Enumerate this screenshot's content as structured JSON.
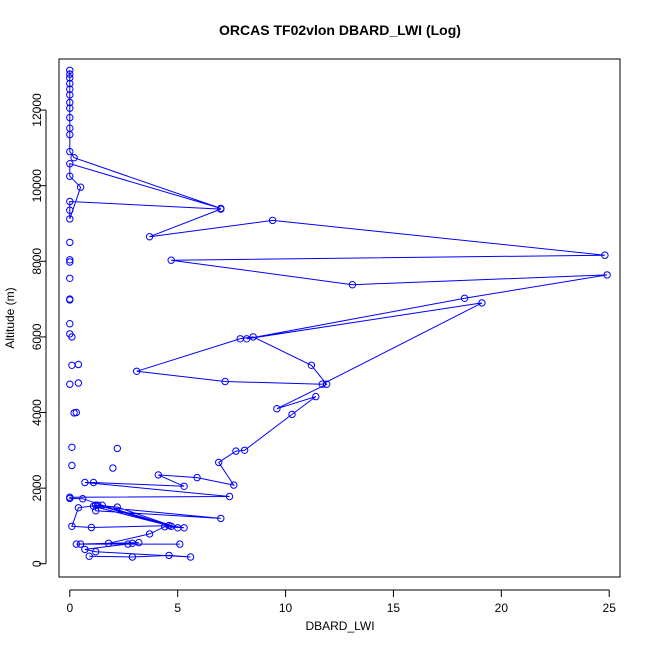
{
  "chart_data": {
    "type": "line",
    "title": "ORCAS TF02vlon DBARD_LWI (Log)",
    "xlabel": "DBARD_LWI",
    "ylabel": "Altitude (m)",
    "xlim": [
      -0.5,
      25.5
    ],
    "ylim": [
      -350,
      13350
    ],
    "x_ticks": [
      0,
      5,
      10,
      15,
      20,
      25
    ],
    "y_ticks": [
      0,
      2000,
      4000,
      6000,
      8000,
      10000,
      12000
    ],
    "grid": false,
    "legend": "none",
    "colors": {
      "series": "#0000ff",
      "axes": "#000000"
    },
    "series": [
      {
        "points": [
          {
            "x": 0.9,
            "y": 200
          },
          {
            "x": 2.9,
            "y": 180
          },
          {
            "x": 4.6,
            "y": 220
          },
          {
            "x": 5.6,
            "y": 180
          },
          {
            "x": 1.2,
            "y": 320
          },
          {
            "x": 0.7,
            "y": 380
          },
          {
            "x": 3.2,
            "y": 560
          },
          {
            "x": 0.3,
            "y": 520
          },
          {
            "x": 5.1,
            "y": 520
          },
          {
            "x": 2.7,
            "y": 520
          },
          {
            "x": 2.9,
            "y": 540
          },
          {
            "x": 0.5,
            "y": 520
          },
          {
            "x": 1.8,
            "y": 540
          },
          {
            "x": 3.7,
            "y": 790
          },
          {
            "x": 4.4,
            "y": 980
          },
          {
            "x": 5.3,
            "y": 950
          },
          {
            "x": 4.6,
            "y": 1010
          },
          {
            "x": 1.0,
            "y": 960
          },
          {
            "x": 0.1,
            "y": 990
          },
          {
            "x": 0.4,
            "y": 1480
          },
          {
            "x": 1.3,
            "y": 1550
          },
          {
            "x": 4.7,
            "y": 990
          },
          {
            "x": 1.1,
            "y": 1520
          },
          {
            "x": 7.0,
            "y": 1200
          },
          {
            "x": 1.2,
            "y": 1400
          },
          {
            "x": 1.2,
            "y": 1550
          },
          {
            "x": 2.2,
            "y": 1500
          },
          {
            "x": 5.0,
            "y": 950
          },
          {
            "x": 1.5,
            "y": 1550
          },
          {
            "x": 0.6,
            "y": 1720
          },
          {
            "x": 0.0,
            "y": 1730
          },
          {
            "x": 0.0,
            "y": 1760
          },
          {
            "x": 7.4,
            "y": 1780
          },
          {
            "x": 0.7,
            "y": 2150
          },
          {
            "x": 1.1,
            "y": 2150
          },
          {
            "x": 5.3,
            "y": 2050
          },
          {
            "x": 4.1,
            "y": 2350
          },
          {
            "x": 5.9,
            "y": 2280
          },
          {
            "x": 7.6,
            "y": 2080
          },
          {
            "x": 6.9,
            "y": 2680
          },
          {
            "x": 7.7,
            "y": 2980
          },
          {
            "x": 8.1,
            "y": 3000
          },
          {
            "x": 10.3,
            "y": 3950
          },
          {
            "x": 11.4,
            "y": 4420
          },
          {
            "x": 9.6,
            "y": 4100
          },
          {
            "x": 11.9,
            "y": 4750
          },
          {
            "x": 11.2,
            "y": 5250
          },
          {
            "x": 8.5,
            "y": 6000
          },
          {
            "x": 7.9,
            "y": 5950
          },
          {
            "x": 3.1,
            "y": 5090
          },
          {
            "x": 7.2,
            "y": 4820
          },
          {
            "x": 11.7,
            "y": 4750
          },
          {
            "x": 19.1,
            "y": 6900
          },
          {
            "x": 8.2,
            "y": 5950
          },
          {
            "x": 18.3,
            "y": 7020
          },
          {
            "x": 24.9,
            "y": 7640
          },
          {
            "x": 13.1,
            "y": 7380
          },
          {
            "x": 4.7,
            "y": 8030
          },
          {
            "x": 24.8,
            "y": 8160
          },
          {
            "x": 9.4,
            "y": 9080
          },
          {
            "x": 3.7,
            "y": 8650
          },
          {
            "x": 7.0,
            "y": 9380
          },
          {
            "x": 0.0,
            "y": 9580
          },
          {
            "x": 0.0,
            "y": 9350
          },
          {
            "x": 0.0,
            "y": 9120
          },
          {
            "x": 0.5,
            "y": 9960
          },
          {
            "x": 0.0,
            "y": 10250
          },
          {
            "x": 0.0,
            "y": 10580
          },
          {
            "x": 7.0,
            "y": 9400
          },
          {
            "x": 0.2,
            "y": 10740
          },
          {
            "x": 0.0,
            "y": 10900
          },
          {
            "x": 0.0,
            "y": 11350
          },
          {
            "x": 0.0,
            "y": 11520
          },
          {
            "x": 0.0,
            "y": 11800
          },
          {
            "x": 0.0,
            "y": 12050
          },
          {
            "x": 0.0,
            "y": 12200
          },
          {
            "x": 0.0,
            "y": 12400
          },
          {
            "x": 0.0,
            "y": 12550
          },
          {
            "x": 0.0,
            "y": 12700
          },
          {
            "x": 0.0,
            "y": 12850
          },
          {
            "x": 0.0,
            "y": 12950
          },
          {
            "x": 0.0,
            "y": 13050
          }
        ],
        "isolated_points": [
          {
            "x": 0.1,
            "y": 2600
          },
          {
            "x": 0.1,
            "y": 3080
          },
          {
            "x": 0.2,
            "y": 3990
          },
          {
            "x": 0.3,
            "y": 4000
          },
          {
            "x": 2.2,
            "y": 3050
          },
          {
            "x": 2.0,
            "y": 2530
          },
          {
            "x": 0.0,
            "y": 4750
          },
          {
            "x": 0.4,
            "y": 4780
          },
          {
            "x": 0.1,
            "y": 5250
          },
          {
            "x": 0.4,
            "y": 5270
          },
          {
            "x": 0.1,
            "y": 6000
          },
          {
            "x": 0.0,
            "y": 6080
          },
          {
            "x": 0.0,
            "y": 6350
          },
          {
            "x": 0.0,
            "y": 6980
          },
          {
            "x": 0.0,
            "y": 7000
          },
          {
            "x": 0.0,
            "y": 7550
          },
          {
            "x": 0.0,
            "y": 7980
          },
          {
            "x": 0.0,
            "y": 8040
          },
          {
            "x": 0.0,
            "y": 8500
          }
        ]
      }
    ]
  }
}
